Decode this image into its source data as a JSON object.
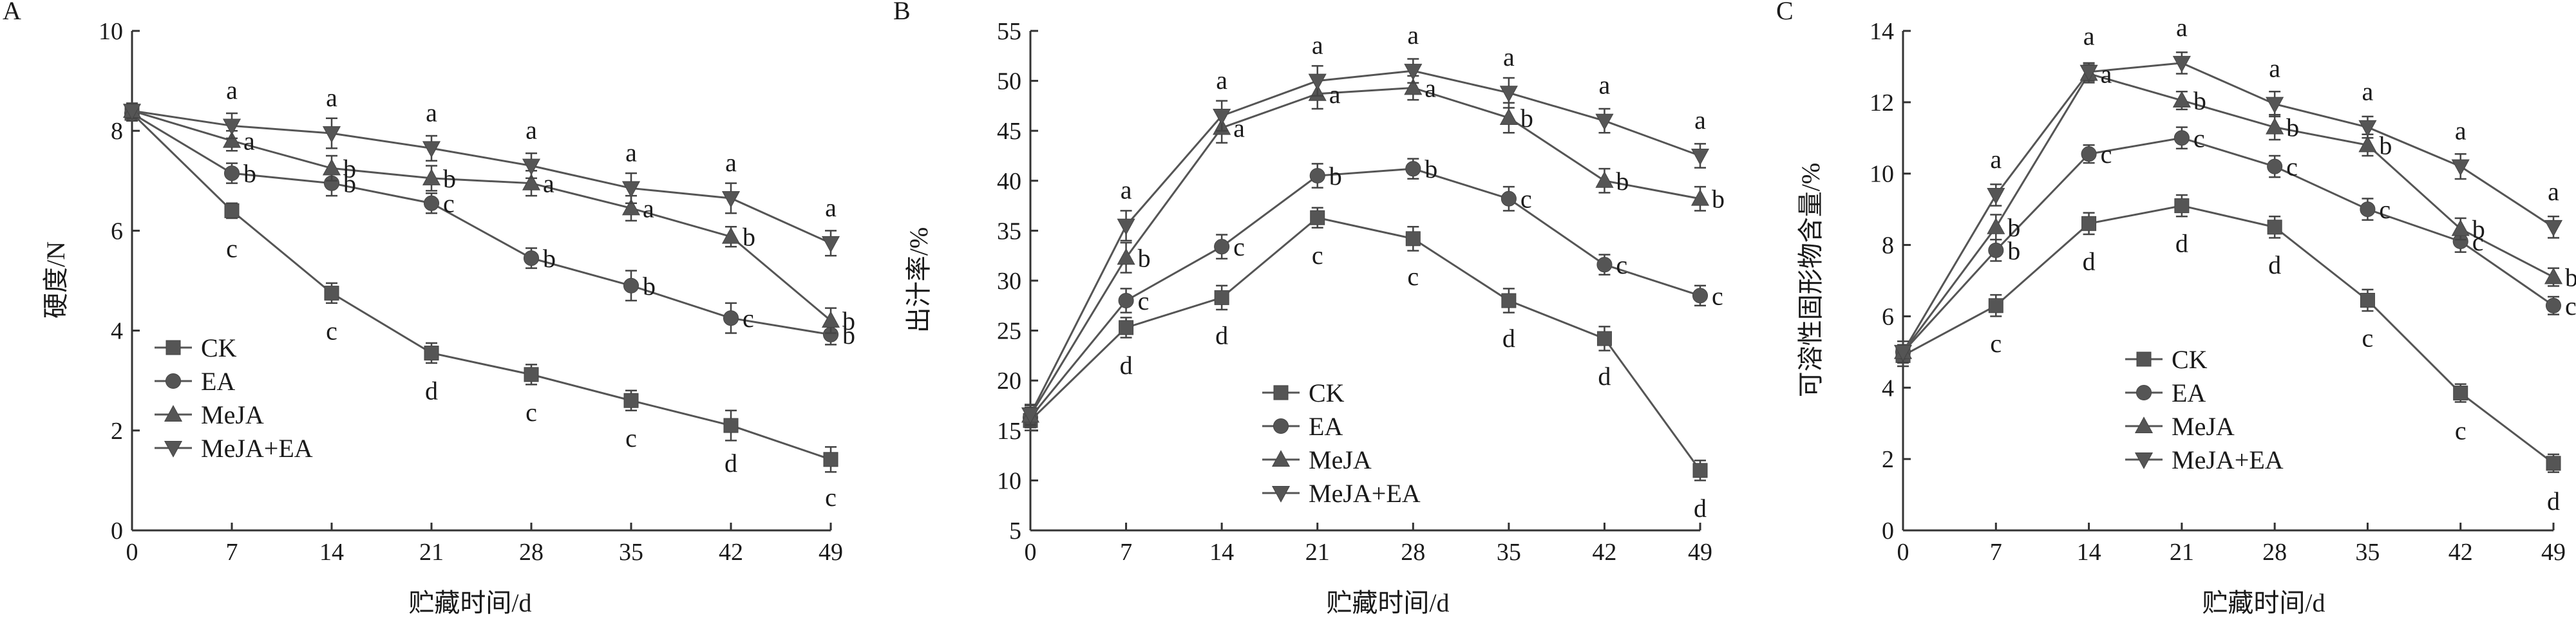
{
  "chart_data": [
    {
      "panel": "A",
      "type": "line",
      "xlabel": "贮藏时间/d",
      "ylabel": "硬度/N",
      "x": [
        0,
        7,
        14,
        21,
        28,
        35,
        42,
        49
      ],
      "ylim": [
        0,
        10
      ],
      "yticks": [
        0,
        2,
        4,
        6,
        8,
        10
      ],
      "legend_position": "bottom-left",
      "series": [
        {
          "name": "CK",
          "marker": "square",
          "values": [
            8.35,
            6.4,
            4.75,
            3.55,
            3.12,
            2.6,
            2.1,
            1.42
          ],
          "errors": [
            0.15,
            0.15,
            0.2,
            0.2,
            0.2,
            0.2,
            0.3,
            0.25
          ],
          "letters": [
            "",
            "c",
            "c",
            "d",
            "c",
            "c",
            "d",
            "c"
          ]
        },
        {
          "name": "EA",
          "marker": "circle",
          "values": [
            8.35,
            7.15,
            6.95,
            6.55,
            5.45,
            4.9,
            4.25,
            3.92
          ],
          "errors": [
            0.15,
            0.2,
            0.25,
            0.2,
            0.2,
            0.3,
            0.3,
            0.2
          ],
          "letters": [
            "",
            "b",
            "b",
            "c",
            "b",
            "b",
            "c",
            "b"
          ]
        },
        {
          "name": "MeJA",
          "marker": "triangle-up",
          "values": [
            8.4,
            7.8,
            7.25,
            7.05,
            6.95,
            6.45,
            5.88,
            4.2
          ],
          "errors": [
            0.15,
            0.2,
            0.25,
            0.25,
            0.25,
            0.25,
            0.2,
            0.25
          ],
          "letters": [
            "",
            "a",
            "b",
            "b",
            "a",
            "a",
            "b",
            "b"
          ]
        },
        {
          "name": "MeJA+EA",
          "marker": "triangle-down",
          "values": [
            8.4,
            8.1,
            7.95,
            7.65,
            7.3,
            6.85,
            6.65,
            5.75
          ],
          "errors": [
            0.15,
            0.25,
            0.3,
            0.25,
            0.25,
            0.3,
            0.3,
            0.25
          ],
          "letters": [
            "",
            "a",
            "a",
            "a",
            "a",
            "a",
            "a",
            "a"
          ]
        }
      ]
    },
    {
      "panel": "B",
      "type": "line",
      "xlabel": "贮藏时间/d",
      "ylabel": "出汁率/%",
      "x": [
        0,
        7,
        14,
        21,
        28,
        35,
        42,
        49
      ],
      "ylim": [
        5,
        55
      ],
      "yticks": [
        5,
        10,
        15,
        20,
        25,
        30,
        35,
        40,
        45,
        50,
        55
      ],
      "legend_position": "lower-center",
      "series": [
        {
          "name": "CK",
          "marker": "square",
          "values": [
            16.0,
            25.3,
            28.3,
            36.3,
            34.2,
            28.0,
            24.2,
            11.0
          ],
          "errors": [
            1.0,
            1.0,
            1.2,
            1.0,
            1.2,
            1.2,
            1.2,
            1.0
          ],
          "letters": [
            "",
            "d",
            "d",
            "c",
            "c",
            "d",
            "d",
            "d"
          ]
        },
        {
          "name": "EA",
          "marker": "circle",
          "values": [
            16.3,
            28.0,
            33.4,
            40.5,
            41.2,
            38.2,
            31.6,
            28.5
          ],
          "errors": [
            1.0,
            1.2,
            1.2,
            1.2,
            1.0,
            1.2,
            1.0,
            1.0
          ],
          "letters": [
            "",
            "c",
            "c",
            "b",
            "b",
            "c",
            "c",
            "c"
          ]
        },
        {
          "name": "MeJA",
          "marker": "triangle-up",
          "values": [
            16.5,
            32.3,
            45.3,
            48.7,
            49.3,
            46.3,
            40.0,
            38.2
          ],
          "errors": [
            1.0,
            1.5,
            1.5,
            1.5,
            1.2,
            1.5,
            1.2,
            1.2
          ],
          "letters": [
            "",
            "b",
            "a",
            "a",
            "a",
            "b",
            "b",
            "b"
          ]
        },
        {
          "name": "MeJA+EA",
          "marker": "triangle-down",
          "values": [
            16.6,
            35.5,
            46.5,
            50.0,
            51.0,
            48.8,
            46.0,
            42.5
          ],
          "errors": [
            1.0,
            1.5,
            1.5,
            1.5,
            1.2,
            1.5,
            1.2,
            1.2
          ],
          "letters": [
            "",
            "a",
            "a",
            "a",
            "a",
            "a",
            "a",
            "a"
          ]
        }
      ]
    },
    {
      "panel": "C",
      "type": "line",
      "xlabel": "贮藏时间/d",
      "ylabel": "可溶性固形物含量/%",
      "x": [
        0,
        7,
        14,
        21,
        28,
        35,
        42,
        49
      ],
      "ylim": [
        0,
        14
      ],
      "yticks": [
        0,
        2,
        4,
        6,
        8,
        10,
        12,
        14
      ],
      "legend_position": "bottom-center",
      "series": [
        {
          "name": "CK",
          "marker": "square",
          "values": [
            4.9,
            6.3,
            8.6,
            9.1,
            8.5,
            6.45,
            3.85,
            1.88
          ],
          "errors": [
            0.3,
            0.3,
            0.3,
            0.3,
            0.3,
            0.3,
            0.25,
            0.25
          ],
          "letters": [
            "",
            "c",
            "d",
            "d",
            "d",
            "c",
            "c",
            "d"
          ]
        },
        {
          "name": "EA",
          "marker": "circle",
          "values": [
            5.0,
            7.85,
            10.55,
            11.0,
            10.2,
            9.0,
            8.1,
            6.3
          ],
          "errors": [
            0.3,
            0.3,
            0.25,
            0.3,
            0.3,
            0.3,
            0.3,
            0.25
          ],
          "letters": [
            "",
            "b",
            "c",
            "c",
            "c",
            "c",
            "c",
            "c"
          ]
        },
        {
          "name": "MeJA",
          "marker": "triangle-up",
          "values": [
            5.0,
            8.5,
            12.8,
            12.05,
            11.3,
            10.8,
            8.45,
            7.1
          ],
          "errors": [
            0.3,
            0.35,
            0.25,
            0.25,
            0.35,
            0.3,
            0.3,
            0.25
          ],
          "letters": [
            "",
            "b",
            "a",
            "b",
            "b",
            "b",
            "b",
            "b"
          ]
        },
        {
          "name": "MeJA+EA",
          "marker": "triangle-down",
          "values": [
            5.0,
            9.4,
            12.85,
            13.1,
            11.95,
            11.3,
            10.2,
            8.5
          ],
          "errors": [
            0.3,
            0.3,
            0.25,
            0.3,
            0.35,
            0.3,
            0.35,
            0.3
          ],
          "letters": [
            "",
            "a",
            "a",
            "a",
            "a",
            "a",
            "a",
            "a"
          ]
        }
      ]
    }
  ]
}
